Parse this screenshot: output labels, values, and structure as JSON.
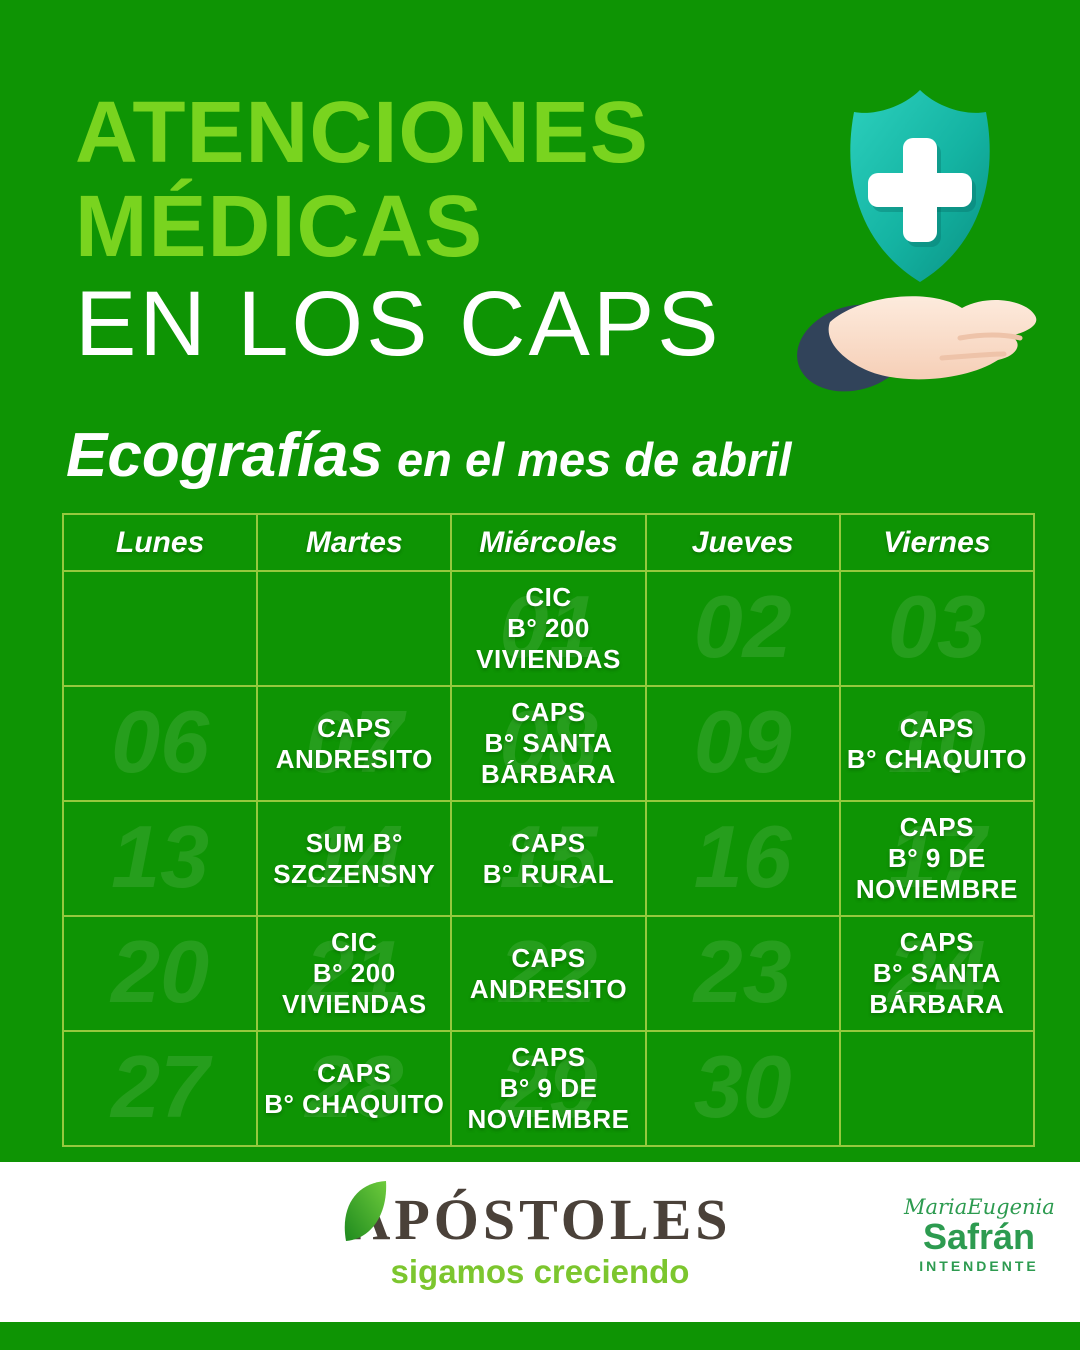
{
  "theme": {
    "background_green": "#0e9404",
    "title_green": "#79d41f",
    "table_border_green": "#95c93e",
    "watermark_number": "rgba(255,255,255,0.10)",
    "footer_brown": "#4a4139",
    "slogan_green": "#7cc62e",
    "safran_green": "#2d9b50",
    "shield_teal": "#14b3a2",
    "sleeve_navy": "#31435a",
    "hand_skin": "#fbe2d2"
  },
  "header": {
    "title_line1": "ATENCIONES",
    "title_line2": "MÉDICAS",
    "title_line3": "EN LOS CAPS",
    "icon": "shield-cross-on-hand"
  },
  "subtitle": {
    "bold": "Ecografías",
    "rest": "en el mes de abril"
  },
  "calendar": {
    "days": [
      "Lunes",
      "Martes",
      "Miércoles",
      "Jueves",
      "Viernes"
    ],
    "rows": [
      [
        {
          "num": "",
          "label": ""
        },
        {
          "num": "",
          "label": ""
        },
        {
          "num": "01",
          "label": "CIC\nB° 200\nVIVIENDAS"
        },
        {
          "num": "02",
          "label": ""
        },
        {
          "num": "03",
          "label": ""
        }
      ],
      [
        {
          "num": "06",
          "label": ""
        },
        {
          "num": "07",
          "label": "CAPS\nANDRESITO"
        },
        {
          "num": "08",
          "label": "CAPS\nB° SANTA\nBÁRBARA"
        },
        {
          "num": "09",
          "label": ""
        },
        {
          "num": "10",
          "label": "CAPS\nB° CHAQUITO"
        }
      ],
      [
        {
          "num": "13",
          "label": ""
        },
        {
          "num": "14",
          "label": "SUM B°\nSZCZENSNY"
        },
        {
          "num": "15",
          "label": "CAPS\nB° RURAL"
        },
        {
          "num": "16",
          "label": ""
        },
        {
          "num": "17",
          "label": "CAPS\nB° 9 DE\nNOVIEMBRE"
        }
      ],
      [
        {
          "num": "20",
          "label": ""
        },
        {
          "num": "21",
          "label": "CIC\nB° 200\nVIVIENDAS"
        },
        {
          "num": "22",
          "label": "CAPS\nANDRESITO"
        },
        {
          "num": "23",
          "label": ""
        },
        {
          "num": "24",
          "label": "CAPS\nB° SANTA\nBÁRBARA"
        }
      ],
      [
        {
          "num": "27",
          "label": ""
        },
        {
          "num": "28",
          "label": "CAPS\nB° CHAQUITO"
        },
        {
          "num": "29",
          "label": "CAPS\nB° 9 DE\nNOVIEMBRE"
        },
        {
          "num": "30",
          "label": ""
        },
        {
          "num": "",
          "label": ""
        }
      ]
    ]
  },
  "footer": {
    "logo_text": "APÓSTOLES",
    "slogan": "sigamos creciendo",
    "signature_script": "MariaEugenia",
    "signature_name": "Safrán",
    "signature_role": "INTENDENTE"
  }
}
